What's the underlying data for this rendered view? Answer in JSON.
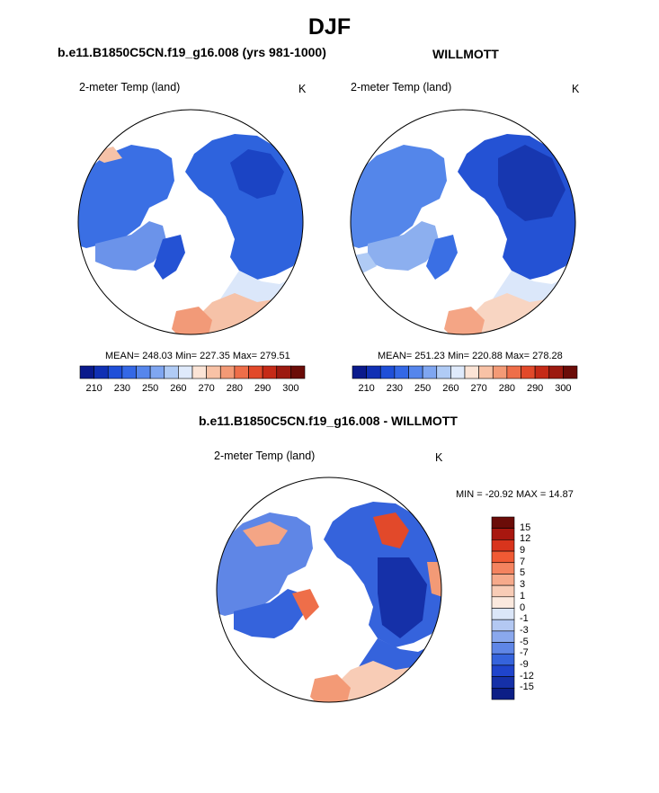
{
  "figure": {
    "title": "DJF",
    "variable_label": "2-meter Temp (land)",
    "units_label": "K"
  },
  "panels": [
    {
      "id": "model",
      "case_title": "b.e11.B1850C5CN.f19_g16.008 (yrs 981-1000)",
      "stats_text": "MEAN= 248.03  Min= 227.35  Max= 279.51",
      "mean": 248.03,
      "min": 227.35,
      "max": 279.51
    },
    {
      "id": "obs",
      "case_title": "WILLMOTT",
      "stats_text": "MEAN= 251.23  Min= 220.88  Max= 278.28",
      "mean": 251.23,
      "min": 220.88,
      "max": 278.28
    },
    {
      "id": "diff",
      "case_title": "b.e11.B1850C5CN.f19_g16.008 - WILLMOTT",
      "stats_text": "MIN = -20.92 MAX =  14.87",
      "min": -20.92,
      "max": 14.87
    }
  ],
  "abs_colorbar": {
    "colors": [
      "#0a1a8c",
      "#1030b4",
      "#1f4fd8",
      "#3468e6",
      "#5686ec",
      "#7fa6f1",
      "#b0cbf5",
      "#dfeafb",
      "#fbe4d6",
      "#f8c2a6",
      "#f39a76",
      "#ee6e49",
      "#e2492a",
      "#c52a17",
      "#9c1a10",
      "#6b0c08"
    ],
    "tick_labels": [
      "210",
      "230",
      "250",
      "260",
      "270",
      "280",
      "290",
      "300"
    ]
  },
  "diff_colorbar": {
    "colors": [
      "#6b0c08",
      "#a8170f",
      "#d8341c",
      "#f05a34",
      "#f4835f",
      "#f6aa8b",
      "#f8ccb6",
      "#fbe9de",
      "#dbe6f8",
      "#b3c8f2",
      "#8aa8ed",
      "#5f86e6",
      "#3563dc",
      "#1f44cc",
      "#1530a8",
      "#0c1e86"
    ],
    "tick_labels": [
      "15",
      "12",
      "9",
      "7",
      "5",
      "3",
      "1",
      "0",
      "-1",
      "-3",
      "-5",
      "-7",
      "-9",
      "-12",
      "-15"
    ]
  }
}
